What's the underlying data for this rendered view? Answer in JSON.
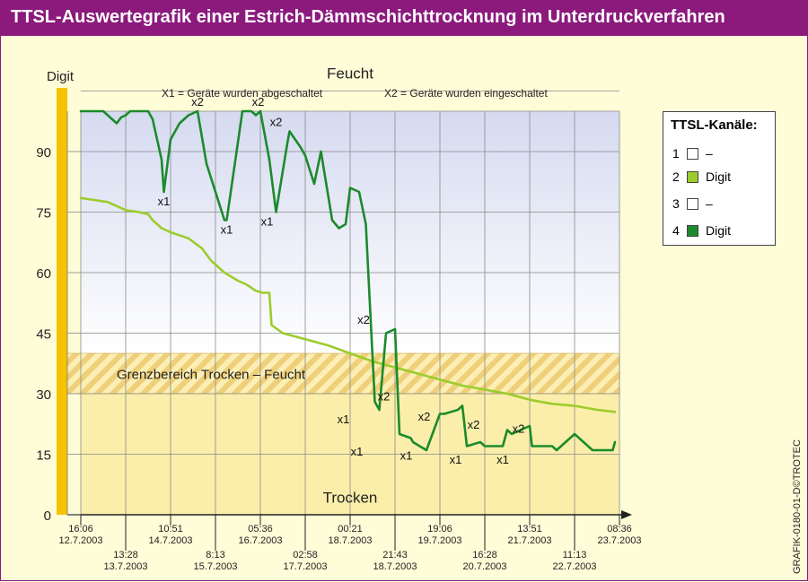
{
  "title": "TTSL-Auswertegrafik einer Estrich-Dämmschichttrocknung im Unterdruckverfahren",
  "credit": "GRAFIK-0180-01-D©TROTEC",
  "colors": {
    "banner": "#8b1a7c",
    "channel2": "#9ccc2c",
    "channel4": "#1c8a2c",
    "yaxis_bar": "#f5c300",
    "wet_top": "#d8dcf0",
    "dry_fill": "#faeeaa",
    "hatch": "#f2d68a"
  },
  "legend": {
    "title": "TTSL-Kanäle:",
    "items": [
      {
        "num": "1",
        "label": "–",
        "color": "#ffffff"
      },
      {
        "num": "2",
        "label": "Digit",
        "color": "#9ccc2c"
      },
      {
        "num": "3",
        "label": "–",
        "color": "#ffffff"
      },
      {
        "num": "4",
        "label": "Digit",
        "color": "#1c8a2c"
      }
    ]
  },
  "chart_data": {
    "type": "line",
    "ylabel": "Digit",
    "ylim": [
      0,
      100
    ],
    "yticks": [
      0,
      15,
      30,
      45,
      60,
      75,
      90
    ],
    "xlim": [
      0,
      12
    ],
    "x_ticks_top": [
      {
        "x": 0,
        "time": "16:06",
        "date": "12.7.2003"
      },
      {
        "x": 2,
        "time": "10:51",
        "date": "14.7.2003"
      },
      {
        "x": 4,
        "time": "05:36",
        "date": "16.7.2003"
      },
      {
        "x": 6,
        "time": "00:21",
        "date": "18.7.2003"
      },
      {
        "x": 8,
        "time": "19:06",
        "date": "19.7.2003"
      },
      {
        "x": 10,
        "time": "13:51",
        "date": "21.7.2003"
      },
      {
        "x": 12,
        "time": "08:36",
        "date": "23.7.2003"
      }
    ],
    "x_ticks_bottom": [
      {
        "x": 1,
        "time": "13:28",
        "date": "13.7.2003"
      },
      {
        "x": 3,
        "time": "8:13",
        "date": "15.7.2003"
      },
      {
        "x": 5,
        "time": "02:58",
        "date": "17.7.2003"
      },
      {
        "x": 7,
        "time": "21:43",
        "date": "18.7.2003"
      },
      {
        "x": 9,
        "time": "16:28",
        "date": "20.7.2003"
      },
      {
        "x": 11,
        "time": "11:13",
        "date": "22.7.2003"
      }
    ],
    "zones": {
      "wet_label": "Feucht",
      "dry_label": "Trocken",
      "border_label": "Grenzbereich Trocken – Feucht",
      "border_range": [
        30,
        40
      ]
    },
    "notes": {
      "x1": "X1 = Geräte wurden abgeschaltet",
      "x2": "X2 = Geräte wurden eingeschaltet"
    },
    "series": [
      {
        "name": "Kanal 2",
        "color": "#9ccc2c",
        "x": [
          0,
          0.3,
          0.6,
          0.8,
          1.0,
          1.3,
          1.5,
          1.6,
          1.8,
          2.0,
          2.4,
          2.7,
          2.9,
          3.2,
          3.5,
          3.7,
          3.9,
          4.05,
          4.2,
          4.25,
          4.5,
          5.0,
          5.5,
          6.0,
          6.5,
          7.0,
          7.5,
          8.0,
          8.5,
          9.0,
          9.5,
          10.0,
          10.5,
          11.0,
          11.5,
          11.9
        ],
        "y": [
          78.5,
          78,
          77.5,
          76.5,
          75.5,
          75,
          74.5,
          73,
          71,
          70,
          68.5,
          66,
          63,
          60,
          58,
          57,
          55.5,
          55,
          55,
          47,
          45,
          43.5,
          42,
          40,
          38,
          36.5,
          35,
          33.5,
          32,
          31,
          30,
          28.5,
          27.5,
          27,
          26,
          25.5
        ]
      },
      {
        "name": "Kanal 4",
        "color": "#1c8a2c",
        "x": [
          0,
          0.5,
          0.7,
          0.8,
          0.9,
          1.0,
          1.1,
          1.5,
          1.6,
          1.8,
          1.85,
          2.0,
          2.2,
          2.4,
          2.6,
          2.8,
          3.0,
          3.2,
          3.25,
          3.6,
          3.8,
          3.9,
          4.0,
          4.2,
          4.35,
          4.6,
          4.65,
          4.9,
          5.0,
          5.2,
          5.35,
          5.6,
          5.75,
          5.9,
          6.0,
          6.2,
          6.35,
          6.55,
          6.65,
          6.8,
          7.0,
          7.1,
          7.35,
          7.4,
          7.7,
          8.0,
          8.1,
          8.4,
          8.5,
          8.6,
          8.9,
          9.0,
          9.4,
          9.5,
          9.6,
          10.0,
          10.05,
          10.5,
          10.6,
          10.9,
          11.0,
          11.4,
          11.5,
          11.85,
          11.9
        ],
        "y": [
          100,
          100,
          98,
          97,
          98.5,
          99,
          100,
          100,
          98,
          88,
          80,
          93,
          97,
          99,
          100,
          87,
          80,
          73,
          73,
          100,
          100,
          99,
          100,
          88,
          75,
          92,
          95,
          91,
          89,
          82,
          90,
          73,
          71,
          72,
          81,
          80,
          72,
          28,
          26,
          45,
          46,
          20,
          19,
          18,
          16,
          25,
          25,
          26,
          27,
          17,
          18,
          17,
          17,
          21,
          20,
          22,
          17,
          17,
          16,
          19,
          20,
          16,
          16,
          16,
          18
        ]
      }
    ],
    "annotations": [
      {
        "label": "x1",
        "x": 1.85,
        "y": 80,
        "pos": "below"
      },
      {
        "label": "x2",
        "x": 2.6,
        "y": 100,
        "pos": "above"
      },
      {
        "label": "x1",
        "x": 3.25,
        "y": 73,
        "pos": "below"
      },
      {
        "label": "x2",
        "x": 3.95,
        "y": 100,
        "pos": "above"
      },
      {
        "label": "x1",
        "x": 4.15,
        "y": 75,
        "pos": "below"
      },
      {
        "label": "x2",
        "x": 4.35,
        "y": 95,
        "pos": "above"
      },
      {
        "label": "x1",
        "x": 5.85,
        "y": 26,
        "pos": "below"
      },
      {
        "label": "x2",
        "x": 6.3,
        "y": 46,
        "pos": "above"
      },
      {
        "label": "x1",
        "x": 6.15,
        "y": 18,
        "pos": "below"
      },
      {
        "label": "x2",
        "x": 6.75,
        "y": 27,
        "pos": "above"
      },
      {
        "label": "x1",
        "x": 7.25,
        "y": 17,
        "pos": "below"
      },
      {
        "label": "x2",
        "x": 7.65,
        "y": 22,
        "pos": "above"
      },
      {
        "label": "x1",
        "x": 8.35,
        "y": 16,
        "pos": "below"
      },
      {
        "label": "x2",
        "x": 8.75,
        "y": 20,
        "pos": "above"
      },
      {
        "label": "x1",
        "x": 9.4,
        "y": 16,
        "pos": "below"
      },
      {
        "label": "x2",
        "x": 9.75,
        "y": 19,
        "pos": "above"
      }
    ]
  }
}
